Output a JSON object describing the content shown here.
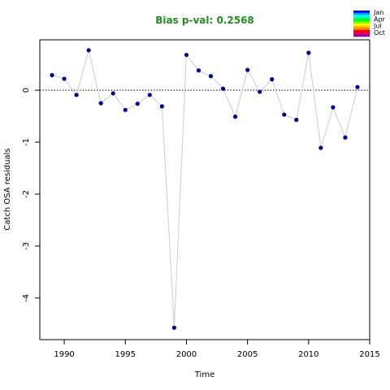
{
  "chart_data": {
    "type": "scatter",
    "title": "Bias p-val: 0.2568",
    "title_color": "#228B22",
    "xlabel": "Time",
    "ylabel": "Catch OSA residuals",
    "xlim": [
      1988,
      2015
    ],
    "ylim": [
      -4.8,
      0.97
    ],
    "xticks": [
      1990,
      1995,
      2000,
      2005,
      2010,
      2015
    ],
    "yticks": [
      0,
      -1,
      -2,
      -3,
      -4
    ],
    "reference_line": 0,
    "point_color": "#00008B",
    "line_color": "#cccccc",
    "legend": {
      "placement": "top-right",
      "labels": [
        "Jan",
        "Apr",
        "Jul",
        "Oct"
      ],
      "colors": [
        "#0000FF",
        "#00A0FF",
        "#00FFFF",
        "#00FF80",
        "#00FF00",
        "#80FF00",
        "#FFFF00",
        "#FFC000",
        "#FF8000",
        "#FF0000",
        "#E00060",
        "#A000A0"
      ]
    },
    "series": [
      {
        "x": [
          1989,
          1990,
          1991,
          1992,
          1993,
          1994,
          1995,
          1996,
          1997,
          1998,
          1999,
          2000,
          2001,
          2002,
          2003,
          2004,
          2005,
          2006,
          2007,
          2008,
          2009,
          2010,
          2011,
          2012,
          2013,
          2014
        ],
        "y": [
          0.29,
          0.22,
          -0.09,
          0.77,
          -0.25,
          -0.06,
          -0.38,
          -0.26,
          -0.09,
          -0.31,
          -4.57,
          0.68,
          0.38,
          0.27,
          0.03,
          -0.51,
          0.39,
          -0.03,
          0.21,
          -0.47,
          -0.57,
          0.72,
          -1.11,
          -0.33,
          -0.91,
          0.06
        ]
      }
    ]
  }
}
